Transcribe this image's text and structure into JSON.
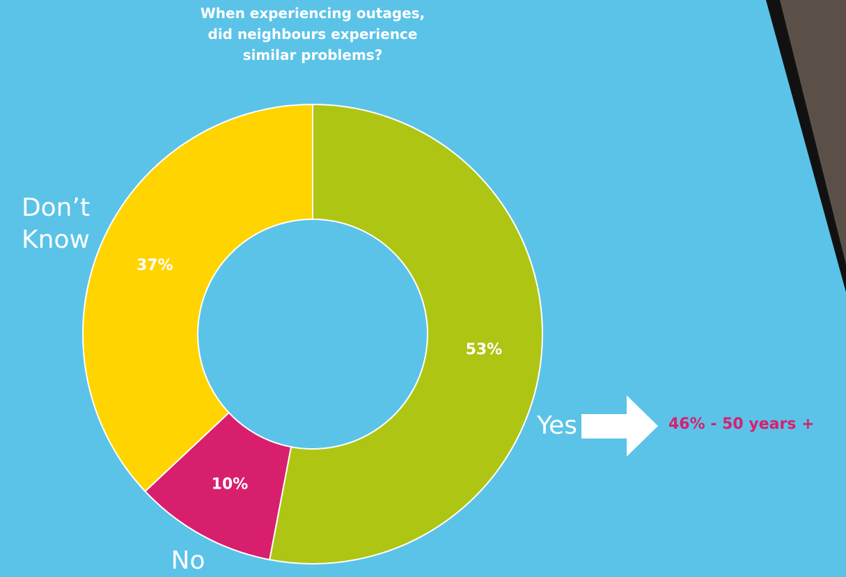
{
  "chart_data": {
    "type": "donut",
    "title": "When experiencing outages, did neighbours experience similar problems?",
    "categories": [
      "Yes",
      "No",
      "Don’t Know"
    ],
    "values": [
      53,
      10,
      37
    ],
    "value_labels": [
      "53%",
      "10%",
      "37%"
    ],
    "colors": [
      "#afc513",
      "#d81f6e",
      "#ffd400"
    ],
    "annotation": "46% - 50 years +"
  }
}
